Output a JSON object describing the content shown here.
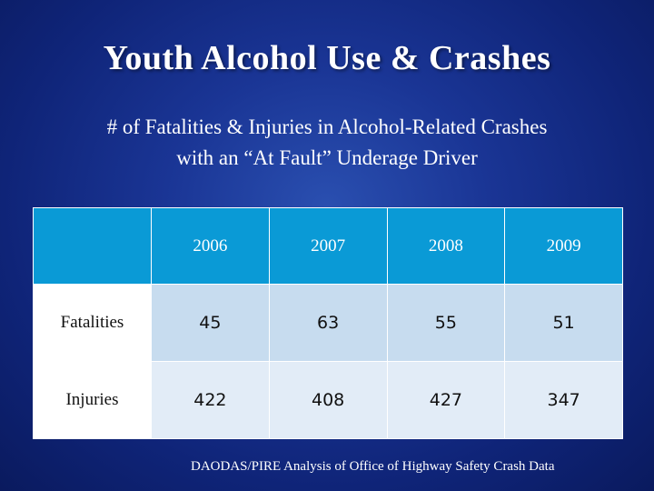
{
  "slide": {
    "title": "Youth Alcohol Use & Crashes",
    "subtitle_line1": "# of Fatalities & Injuries in Alcohol-Related Crashes",
    "subtitle_line2": "with an “At Fault” Underage Driver",
    "source": "DAODAS/PIRE Analysis of Office of Highway Safety Crash Data"
  },
  "table": {
    "corner": "",
    "columns": [
      "2006",
      "2007",
      "2008",
      "2009"
    ],
    "rows": [
      {
        "label": "Fatalities",
        "values": [
          "45",
          "63",
          "55",
          "51"
        ]
      },
      {
        "label": "Injuries",
        "values": [
          "422",
          "408",
          "427",
          "347"
        ]
      }
    ]
  },
  "colors": {
    "background": "#1a3595",
    "header_fill": "#0a9ad6",
    "row1_fill": "#c7dcef",
    "row2_fill": "#e2ecf7"
  }
}
